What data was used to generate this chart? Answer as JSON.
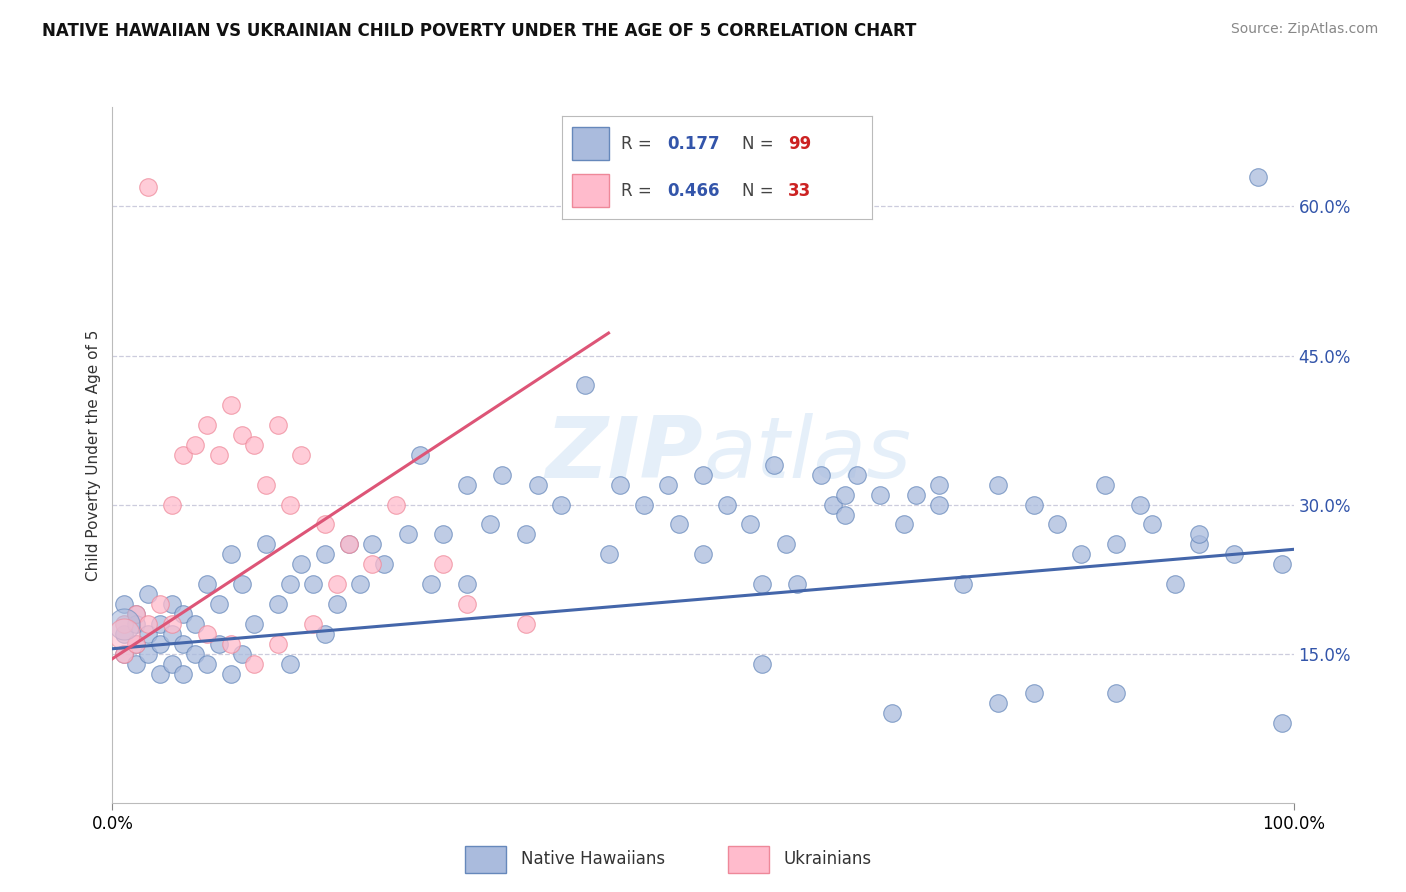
{
  "title": "NATIVE HAWAIIAN VS UKRAINIAN CHILD POVERTY UNDER THE AGE OF 5 CORRELATION CHART",
  "source": "Source: ZipAtlas.com",
  "ylabel": "Child Poverty Under the Age of 5",
  "xlim": [
    0,
    1.0
  ],
  "ylim": [
    0,
    0.7
  ],
  "ytick_vals": [
    0.15,
    0.3,
    0.45,
    0.6
  ],
  "r1_val": "0.177",
  "n1_val": "99",
  "r2_val": "0.466",
  "n2_val": "33",
  "blue_fill": "#AABBDD",
  "blue_edge": "#6688BB",
  "pink_fill": "#FFBBCC",
  "pink_edge": "#EE8899",
  "blue_line": "#4466AA",
  "pink_line": "#DD5577",
  "grid_color": "#CCCCDD",
  "text_blue": "#3355AA",
  "text_red": "#CC2222",
  "watermark": "ZIPatlas",
  "nh_x": [
    0.01,
    0.01,
    0.01,
    0.02,
    0.02,
    0.02,
    0.02,
    0.03,
    0.03,
    0.03,
    0.04,
    0.04,
    0.04,
    0.05,
    0.05,
    0.05,
    0.06,
    0.06,
    0.06,
    0.07,
    0.07,
    0.08,
    0.08,
    0.09,
    0.09,
    0.1,
    0.1,
    0.11,
    0.11,
    0.12,
    0.13,
    0.14,
    0.15,
    0.15,
    0.16,
    0.17,
    0.18,
    0.18,
    0.19,
    0.2,
    0.21,
    0.22,
    0.23,
    0.25,
    0.26,
    0.27,
    0.28,
    0.3,
    0.3,
    0.32,
    0.33,
    0.35,
    0.36,
    0.38,
    0.4,
    0.42,
    0.43,
    0.45,
    0.47,
    0.48,
    0.5,
    0.5,
    0.52,
    0.54,
    0.55,
    0.56,
    0.57,
    0.58,
    0.6,
    0.61,
    0.62,
    0.63,
    0.65,
    0.67,
    0.68,
    0.7,
    0.72,
    0.75,
    0.78,
    0.8,
    0.82,
    0.84,
    0.85,
    0.87,
    0.88,
    0.9,
    0.92,
    0.95,
    0.97,
    0.99,
    0.99,
    0.85,
    0.7,
    0.75,
    0.92,
    0.62,
    0.78,
    0.55,
    0.66
  ],
  "nh_y": [
    0.2,
    0.17,
    0.15,
    0.19,
    0.16,
    0.18,
    0.14,
    0.21,
    0.17,
    0.15,
    0.18,
    0.16,
    0.13,
    0.2,
    0.17,
    0.14,
    0.19,
    0.16,
    0.13,
    0.18,
    0.15,
    0.22,
    0.14,
    0.2,
    0.16,
    0.25,
    0.13,
    0.22,
    0.15,
    0.18,
    0.26,
    0.2,
    0.22,
    0.14,
    0.24,
    0.22,
    0.25,
    0.17,
    0.2,
    0.26,
    0.22,
    0.26,
    0.24,
    0.27,
    0.35,
    0.22,
    0.27,
    0.32,
    0.22,
    0.28,
    0.33,
    0.27,
    0.32,
    0.3,
    0.42,
    0.25,
    0.32,
    0.3,
    0.32,
    0.28,
    0.25,
    0.33,
    0.3,
    0.28,
    0.22,
    0.34,
    0.26,
    0.22,
    0.33,
    0.3,
    0.31,
    0.33,
    0.31,
    0.28,
    0.31,
    0.3,
    0.22,
    0.32,
    0.3,
    0.28,
    0.25,
    0.32,
    0.26,
    0.3,
    0.28,
    0.22,
    0.26,
    0.25,
    0.63,
    0.08,
    0.24,
    0.11,
    0.32,
    0.1,
    0.27,
    0.29,
    0.11,
    0.14,
    0.09
  ],
  "uk_x": [
    0.01,
    0.01,
    0.02,
    0.02,
    0.03,
    0.03,
    0.04,
    0.05,
    0.05,
    0.06,
    0.07,
    0.08,
    0.08,
    0.09,
    0.1,
    0.1,
    0.11,
    0.12,
    0.12,
    0.13,
    0.14,
    0.14,
    0.15,
    0.16,
    0.17,
    0.18,
    0.19,
    0.2,
    0.22,
    0.24,
    0.28,
    0.3,
    0.35
  ],
  "uk_y": [
    0.18,
    0.15,
    0.19,
    0.16,
    0.62,
    0.18,
    0.2,
    0.3,
    0.18,
    0.35,
    0.36,
    0.38,
    0.17,
    0.35,
    0.4,
    0.16,
    0.37,
    0.36,
    0.14,
    0.32,
    0.38,
    0.16,
    0.3,
    0.35,
    0.18,
    0.28,
    0.22,
    0.26,
    0.24,
    0.3,
    0.24,
    0.2,
    0.18
  ]
}
